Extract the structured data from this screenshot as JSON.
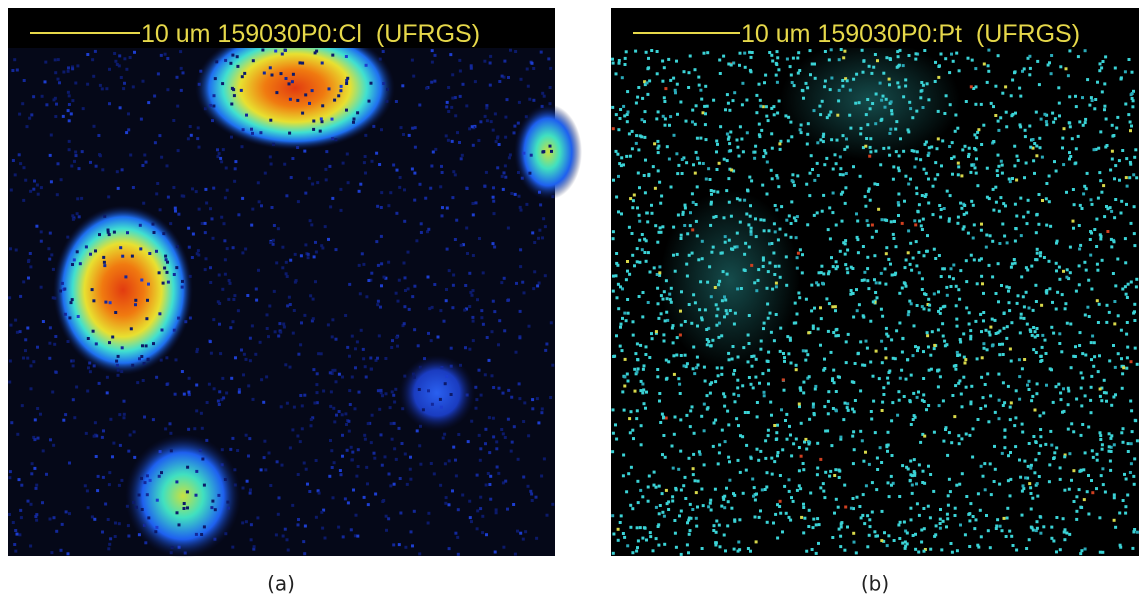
{
  "panels": [
    {
      "header": "10 um 159030P0:Cl  (UFRGS)",
      "caption": "(a)"
    },
    {
      "header": "10 um 159030P0:Pt  (UFRGS)",
      "caption": "(b)"
    }
  ]
}
